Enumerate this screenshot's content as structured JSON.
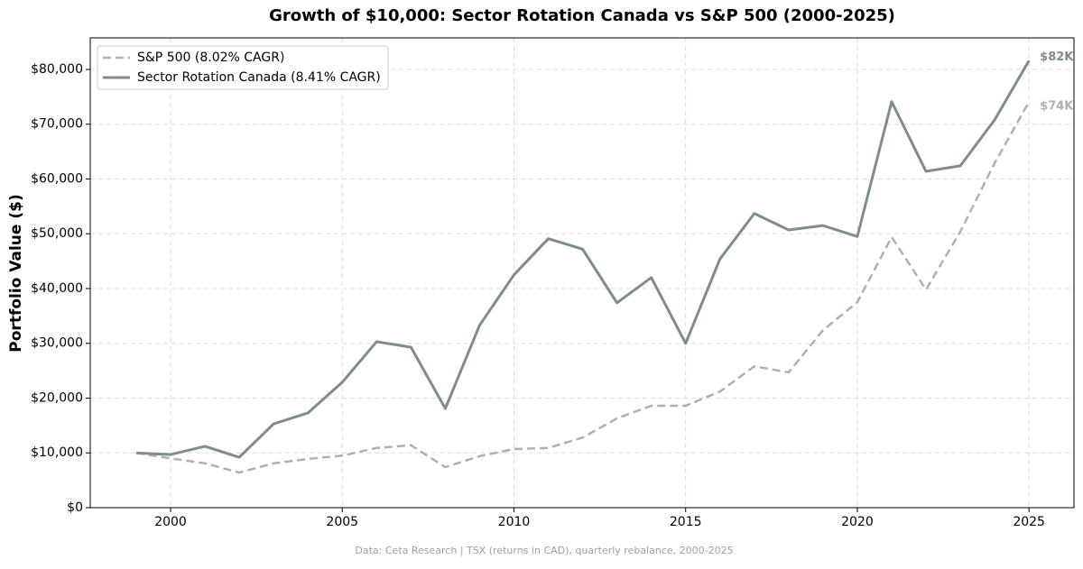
{
  "chart_data": {
    "type": "line",
    "title": "Growth of $10,000: Sector Rotation Canada vs S&P 500 (2000-2025)",
    "y_label": "Portfolio Value ($)",
    "source": "Data: Ceta Research | TSX (returns in CAD), quarterly rebalance, 2000-2025",
    "x": [
      1999,
      2000,
      2001,
      2002,
      2003,
      2004,
      2005,
      2006,
      2007,
      2008,
      2009,
      2010,
      2011,
      2012,
      2013,
      2014,
      2015,
      2016,
      2017,
      2018,
      2019,
      2020,
      2021,
      2022,
      2023,
      2024,
      2025
    ],
    "series": [
      {
        "name": "S&P 500 (8.02% CAGR)",
        "color": "#a9b4b2",
        "dashed": true,
        "end_label": "$74K",
        "values": [
          10000,
          9000,
          8100,
          6400,
          8100,
          8900,
          9500,
          10900,
          11400,
          7400,
          9400,
          10700,
          10900,
          12800,
          16300,
          18600,
          18600,
          21200,
          25800,
          24700,
          32400,
          37500,
          49400,
          39800,
          50400,
          62900,
          74100
        ]
      },
      {
        "name": "Sector Rotation Canada (8.41% CAGR)",
        "color": "#7f8c8d",
        "dashed": false,
        "end_label": "$82K",
        "values": [
          10000,
          9700,
          11200,
          9200,
          15300,
          17300,
          22900,
          30300,
          29300,
          18100,
          33300,
          42500,
          49100,
          47200,
          37400,
          42000,
          30000,
          45400,
          53700,
          50700,
          51500,
          49500,
          74100,
          61400,
          62400,
          70800,
          81600
        ]
      }
    ],
    "xlim": [
      1997.66,
      2026.31
    ],
    "xticks": [
      2000,
      2005,
      2010,
      2015,
      2020,
      2025
    ],
    "ylim": [
      0,
      85760
    ],
    "yticks": [
      {
        "value": 0,
        "label": "$0"
      },
      {
        "value": 10000,
        "label": "$10,000"
      },
      {
        "value": 20000,
        "label": "$20,000"
      },
      {
        "value": 30000,
        "label": "$30,000"
      },
      {
        "value": 40000,
        "label": "$40,000"
      },
      {
        "value": 50000,
        "label": "$50,000"
      },
      {
        "value": 60000,
        "label": "$60,000"
      },
      {
        "value": 70000,
        "label": "$70,000"
      },
      {
        "value": 80000,
        "label": "$80,000"
      }
    ],
    "grid": true,
    "legend": "upper left"
  }
}
